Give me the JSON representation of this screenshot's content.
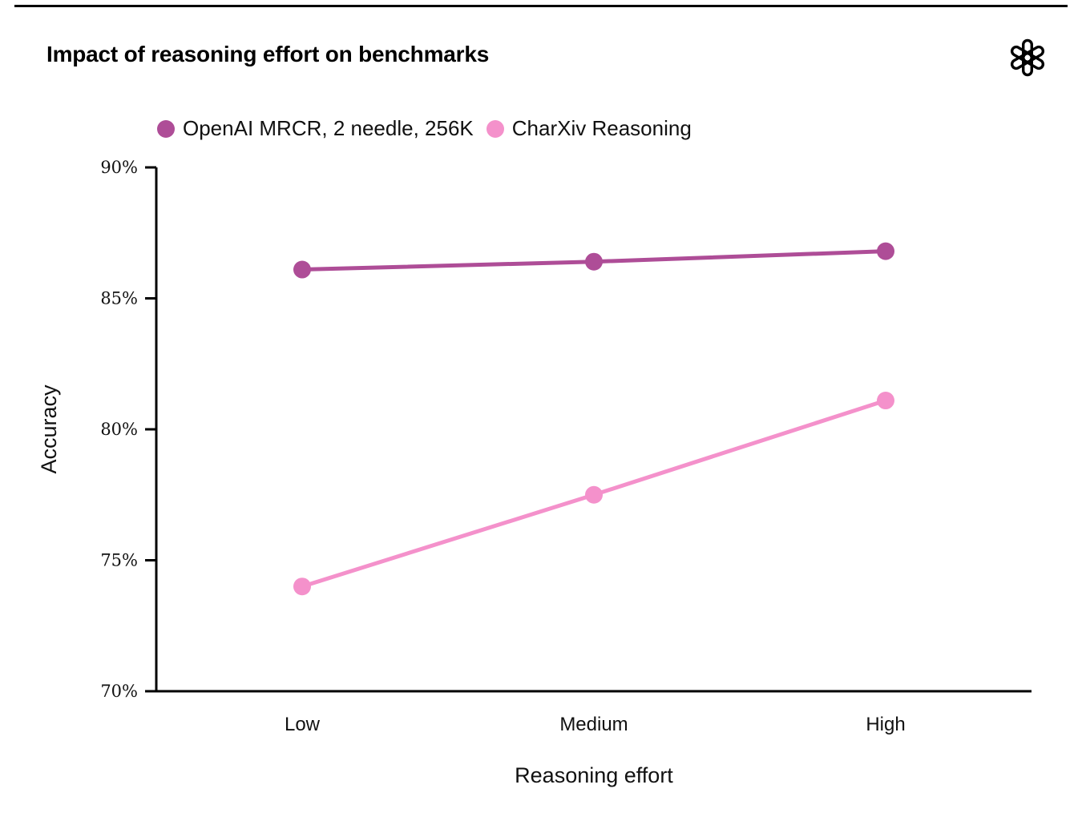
{
  "header": {
    "title": "Impact of reasoning effort on benchmarks",
    "logo": "openai-logo"
  },
  "chart_data": {
    "type": "line",
    "title": "Impact of reasoning effort on benchmarks",
    "categories": [
      "Low",
      "Medium",
      "High"
    ],
    "series": [
      {
        "name": "OpenAI MRCR, 2 needle, 256K",
        "color": "#ae4d97",
        "values": [
          86.1,
          86.4,
          86.8
        ]
      },
      {
        "name": "CharXiv Reasoning",
        "color": "#f491cb",
        "values": [
          74.0,
          77.5,
          81.1
        ]
      }
    ],
    "xlabel": "Reasoning effort",
    "ylabel": "Accuracy",
    "ylim": [
      70,
      90
    ],
    "yticks": [
      90,
      85,
      80,
      75,
      70
    ],
    "ytick_labels": [
      "90%",
      "85%",
      "80%",
      "75%",
      "70%"
    ],
    "legend_position": "top-left",
    "grid": false,
    "axis_color": "#000000",
    "background": "#ffffff"
  }
}
